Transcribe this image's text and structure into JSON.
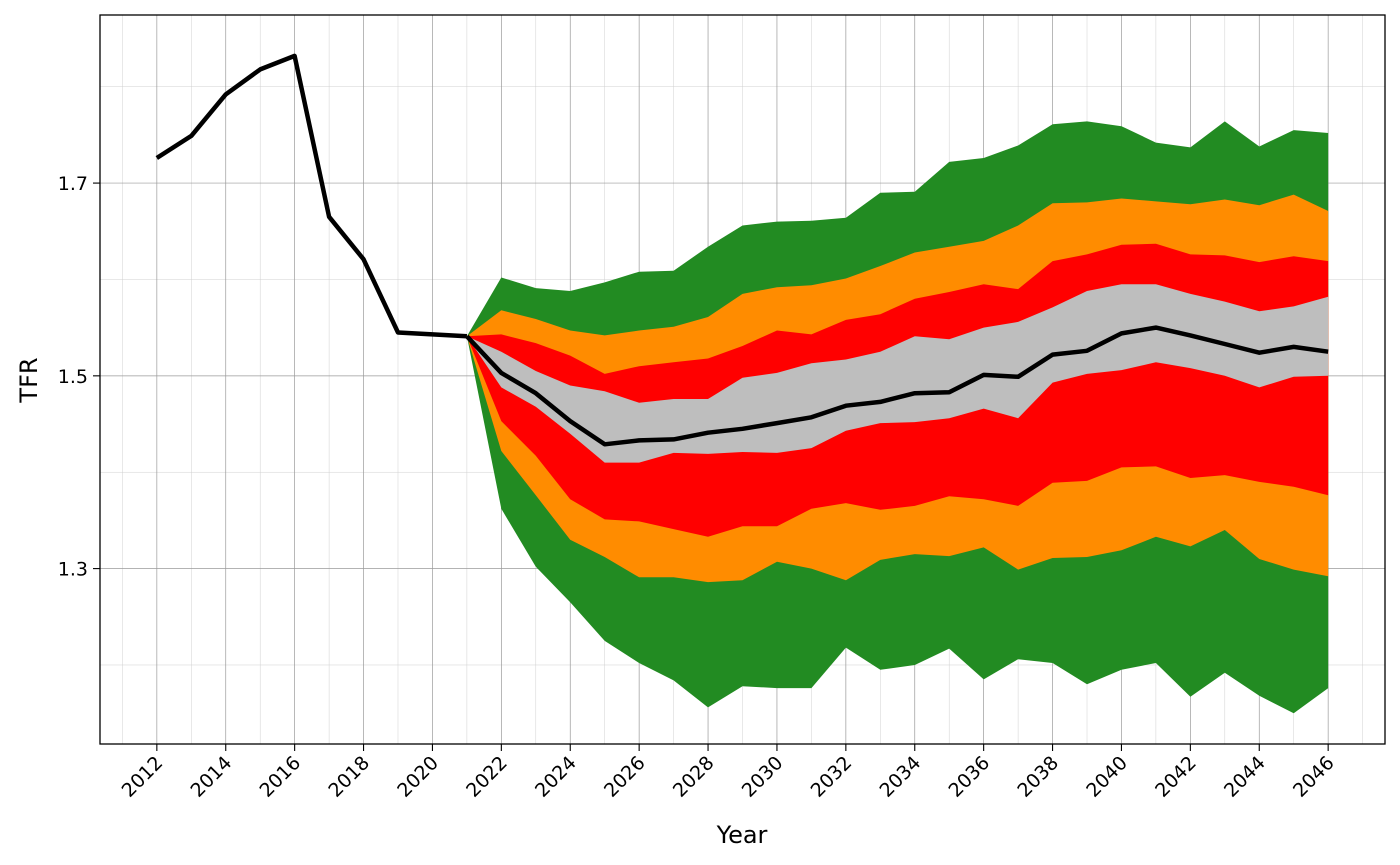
{
  "chart_data": {
    "type": "area",
    "xlabel": "Year",
    "ylabel": "TFR",
    "xlim": [
      2010.35,
      2047.65
    ],
    "ylim": [
      1.118,
      1.8744
    ],
    "x_ticks": [
      2012,
      2014,
      2016,
      2018,
      2020,
      2022,
      2024,
      2026,
      2028,
      2030,
      2032,
      2034,
      2036,
      2038,
      2040,
      2042,
      2044,
      2046
    ],
    "x_tick_labels": [
      "2012",
      "2014",
      "2016",
      "2018",
      "2020",
      "2022",
      "2024",
      "2026",
      "2028",
      "2030",
      "2032",
      "2034",
      "2036",
      "2038",
      "2040",
      "2042",
      "2044",
      "2046"
    ],
    "y_ticks": [
      1.3,
      1.5,
      1.7
    ],
    "y_tick_labels": [
      "1.3",
      "1.5",
      "1.7"
    ],
    "y_minor_ticks": [
      1.2,
      1.4,
      1.6,
      1.8
    ],
    "grid": true,
    "legend": "none",
    "colors": {
      "outer_band": "#228B22",
      "mid_band": "#FF8C00",
      "inner_band": "#FF0000",
      "center_band": "#BEBEBE",
      "line": "#000000"
    },
    "observed": {
      "x": [
        2012,
        2013,
        2014,
        2015,
        2016,
        2017,
        2018,
        2019,
        2021
      ],
      "y": [
        1.726,
        1.749,
        1.792,
        1.818,
        1.832,
        1.665,
        1.621,
        1.545,
        1.541
      ]
    },
    "forecast": {
      "x": [
        2021,
        2022,
        2023,
        2024,
        2025,
        2026,
        2027,
        2028,
        2029,
        2030,
        2031,
        2032,
        2033,
        2034,
        2035,
        2036,
        2037,
        2038,
        2039,
        2040,
        2041,
        2042,
        2043,
        2044,
        2045,
        2046
      ],
      "median": [
        1.541,
        1.503,
        1.482,
        1.453,
        1.429,
        1.433,
        1.434,
        1.441,
        1.445,
        1.451,
        1.457,
        1.469,
        1.473,
        1.482,
        1.483,
        1.501,
        1.499,
        1.522,
        1.526,
        1.544,
        1.55,
        1.542,
        1.533,
        1.524,
        1.53,
        1.525
      ],
      "bands": [
        {
          "role": "outer_band",
          "upper": [
            1.541,
            1.602,
            1.591,
            1.588,
            1.597,
            1.608,
            1.609,
            1.634,
            1.656,
            1.66,
            1.661,
            1.664,
            1.69,
            1.691,
            1.722,
            1.726,
            1.739,
            1.761,
            1.764,
            1.759,
            1.742,
            1.737,
            1.764,
            1.738,
            1.755,
            1.752
          ],
          "lower": [
            1.541,
            1.362,
            1.302,
            1.265,
            1.225,
            1.202,
            1.184,
            1.156,
            1.178,
            1.176,
            1.176,
            1.218,
            1.195,
            1.2,
            1.217,
            1.185,
            1.206,
            1.202,
            1.18,
            1.195,
            1.202,
            1.167,
            1.192,
            1.168,
            1.15,
            1.176
          ]
        },
        {
          "role": "mid_band",
          "upper": [
            1.541,
            1.568,
            1.559,
            1.547,
            1.542,
            1.547,
            1.551,
            1.561,
            1.585,
            1.592,
            1.594,
            1.601,
            1.614,
            1.628,
            1.634,
            1.64,
            1.656,
            1.679,
            1.68,
            1.684,
            1.681,
            1.678,
            1.683,
            1.677,
            1.688,
            1.671
          ],
          "lower": [
            1.541,
            1.422,
            1.376,
            1.33,
            1.312,
            1.291,
            1.291,
            1.286,
            1.288,
            1.307,
            1.3,
            1.288,
            1.309,
            1.315,
            1.313,
            1.322,
            1.299,
            1.311,
            1.312,
            1.319,
            1.333,
            1.323,
            1.34,
            1.31,
            1.299,
            1.292
          ]
        },
        {
          "role": "inner_band",
          "upper": [
            1.541,
            1.543,
            1.534,
            1.521,
            1.502,
            1.51,
            1.514,
            1.518,
            1.531,
            1.547,
            1.543,
            1.558,
            1.564,
            1.58,
            1.587,
            1.595,
            1.59,
            1.619,
            1.626,
            1.636,
            1.637,
            1.626,
            1.625,
            1.618,
            1.624,
            1.619
          ],
          "lower": [
            1.541,
            1.453,
            1.417,
            1.372,
            1.351,
            1.349,
            1.341,
            1.333,
            1.344,
            1.344,
            1.362,
            1.368,
            1.361,
            1.365,
            1.375,
            1.372,
            1.365,
            1.389,
            1.391,
            1.405,
            1.406,
            1.394,
            1.397,
            1.39,
            1.385,
            1.376
          ]
        },
        {
          "role": "center_band",
          "upper": [
            1.541,
            1.525,
            1.505,
            1.49,
            1.484,
            1.472,
            1.476,
            1.476,
            1.498,
            1.503,
            1.513,
            1.517,
            1.525,
            1.541,
            1.538,
            1.55,
            1.556,
            1.571,
            1.588,
            1.595,
            1.595,
            1.585,
            1.577,
            1.567,
            1.572,
            1.582
          ],
          "lower": [
            1.541,
            1.488,
            1.468,
            1.44,
            1.41,
            1.41,
            1.42,
            1.419,
            1.421,
            1.42,
            1.425,
            1.443,
            1.451,
            1.452,
            1.456,
            1.466,
            1.456,
            1.493,
            1.502,
            1.506,
            1.514,
            1.508,
            1.5,
            1.488,
            1.499,
            1.5
          ]
        }
      ]
    }
  }
}
